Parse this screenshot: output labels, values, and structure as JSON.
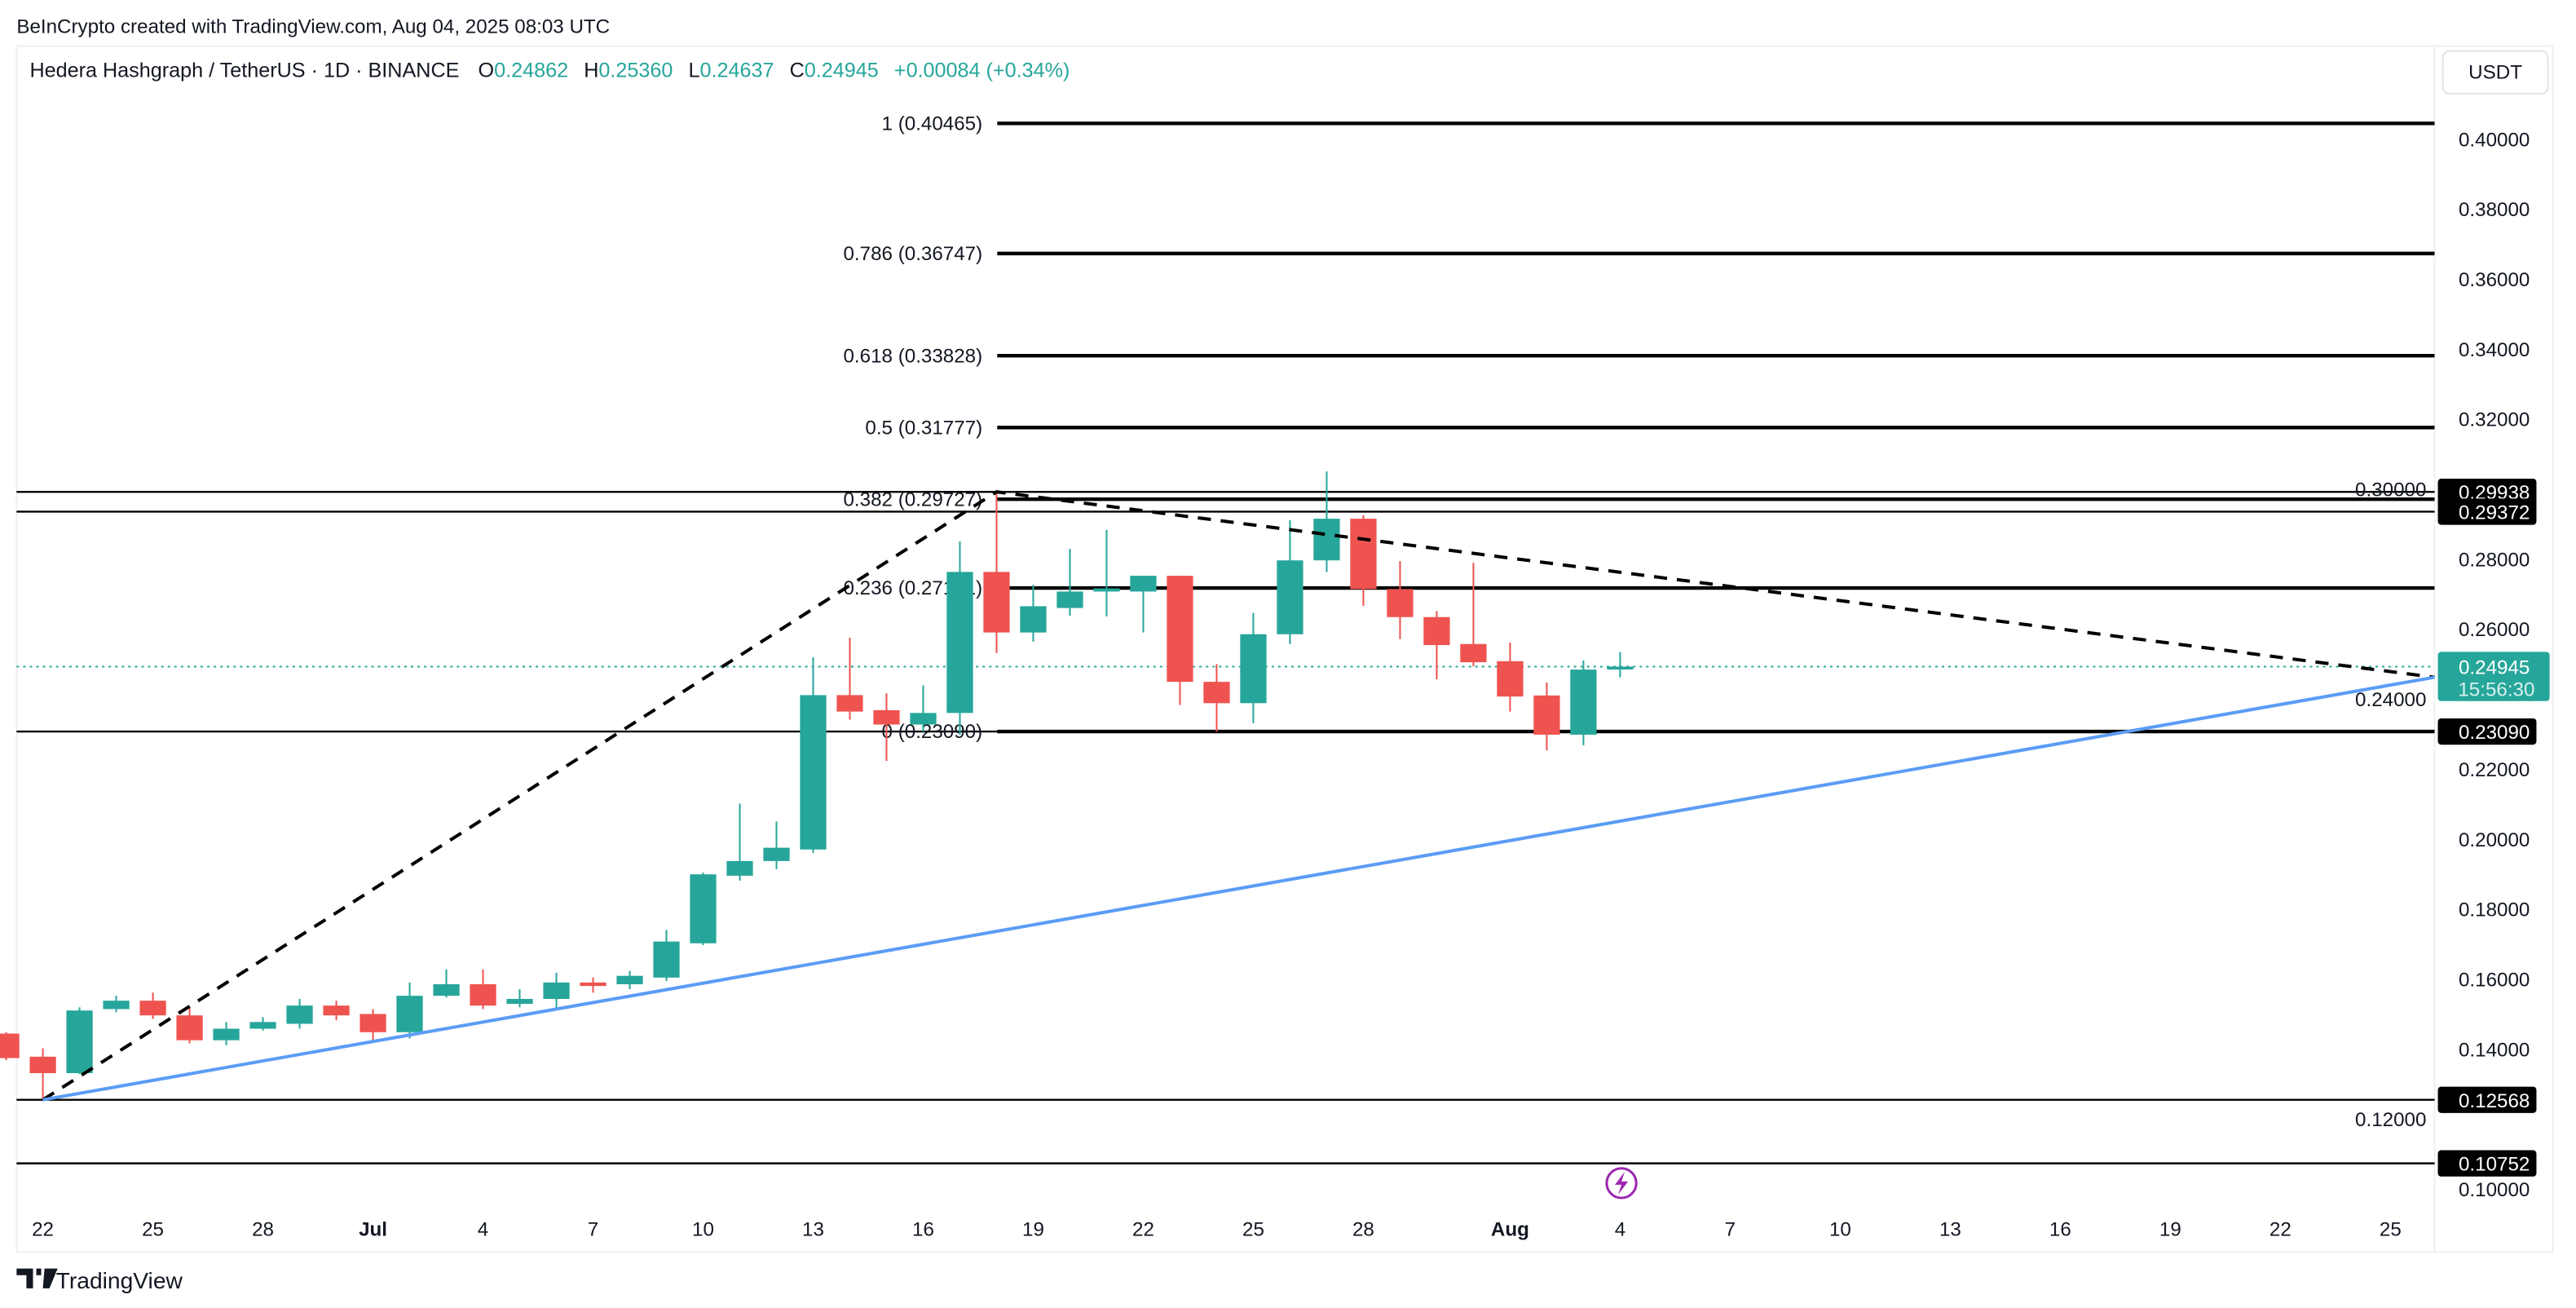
{
  "attribution": "BeInCrypto created with TradingView.com, Aug 04, 2025 08:03 UTC",
  "legend": {
    "symbol": "Hedera Hashgraph / TetherUS · 1D · BINANCE",
    "o_label": "O",
    "o": "0.24862",
    "h_label": "H",
    "h": "0.25360",
    "l_label": "L",
    "l": "0.24637",
    "c_label": "C",
    "c": "0.24945",
    "change": "+0.00084 (+0.34%)"
  },
  "currency_button": "USDT",
  "brand": "TradingView",
  "colors": {
    "up": "#26a69a",
    "down": "#ef5350",
    "trendline": "#5b9cf6",
    "alert": "#9c27b0"
  },
  "chart_data": {
    "type": "candlestick",
    "title": "Hedera Hashgraph / TetherUS · 1D · BINANCE",
    "ylim": [
      0.0955,
      0.4267
    ],
    "y_ticks": [
      "0.40000",
      "0.38000",
      "0.36000",
      "0.34000",
      "0.32000",
      "0.30000",
      "0.28000",
      "0.26000",
      "0.24000",
      "0.22000",
      "0.20000",
      "0.18000",
      "0.16000",
      "0.14000",
      "0.12000",
      "0.10000"
    ],
    "x_ticks": [
      {
        "label": "22",
        "day": 0,
        "bold": false
      },
      {
        "label": "25",
        "day": 3,
        "bold": false
      },
      {
        "label": "28",
        "day": 6,
        "bold": false
      },
      {
        "label": "Jul",
        "day": 9,
        "bold": true
      },
      {
        "label": "4",
        "day": 12,
        "bold": false
      },
      {
        "label": "7",
        "day": 15,
        "bold": false
      },
      {
        "label": "10",
        "day": 18,
        "bold": false
      },
      {
        "label": "13",
        "day": 21,
        "bold": false
      },
      {
        "label": "16",
        "day": 24,
        "bold": false
      },
      {
        "label": "19",
        "day": 27,
        "bold": false
      },
      {
        "label": "22",
        "day": 30,
        "bold": false
      },
      {
        "label": "25",
        "day": 33,
        "bold": false
      },
      {
        "label": "28",
        "day": 36,
        "bold": false
      },
      {
        "label": "Aug",
        "day": 40,
        "bold": true
      },
      {
        "label": "4",
        "day": 43,
        "bold": false
      },
      {
        "label": "7",
        "day": 46,
        "bold": false
      },
      {
        "label": "10",
        "day": 49,
        "bold": false
      },
      {
        "label": "13",
        "day": 52,
        "bold": false
      },
      {
        "label": "16",
        "day": 55,
        "bold": false
      },
      {
        "label": "19",
        "day": 58,
        "bold": false
      },
      {
        "label": "22",
        "day": 61,
        "bold": false
      },
      {
        "label": "25",
        "day": 64,
        "bold": false
      }
    ],
    "candles": [
      {
        "date": "Jun 21",
        "day": -1,
        "o": 0.1446,
        "h": 0.145,
        "l": 0.137,
        "c": 0.1376
      },
      {
        "date": "Jun 22",
        "day": 0,
        "o": 0.138,
        "h": 0.1404,
        "l": 0.1257,
        "c": 0.1333
      },
      {
        "date": "Jun 23",
        "day": 1,
        "o": 0.1333,
        "h": 0.1521,
        "l": 0.133,
        "c": 0.1512
      },
      {
        "date": "Jun 24",
        "day": 2,
        "o": 0.1516,
        "h": 0.1554,
        "l": 0.1507,
        "c": 0.154
      },
      {
        "date": "Jun 25",
        "day": 3,
        "o": 0.154,
        "h": 0.1563,
        "l": 0.1488,
        "c": 0.1498
      },
      {
        "date": "Jun 26",
        "day": 4,
        "o": 0.1498,
        "h": 0.1521,
        "l": 0.1418,
        "c": 0.1427
      },
      {
        "date": "Jun 27",
        "day": 5,
        "o": 0.1427,
        "h": 0.1479,
        "l": 0.1413,
        "c": 0.146
      },
      {
        "date": "Jun 28",
        "day": 6,
        "o": 0.146,
        "h": 0.1493,
        "l": 0.1455,
        "c": 0.1479
      },
      {
        "date": "Jun 29",
        "day": 7,
        "o": 0.1474,
        "h": 0.1545,
        "l": 0.146,
        "c": 0.1526
      },
      {
        "date": "Jun 30",
        "day": 8,
        "o": 0.1526,
        "h": 0.154,
        "l": 0.1484,
        "c": 0.1498
      },
      {
        "date": "Jul 1",
        "day": 9,
        "o": 0.1502,
        "h": 0.1516,
        "l": 0.1423,
        "c": 0.145
      },
      {
        "date": "Jul 2",
        "day": 10,
        "o": 0.145,
        "h": 0.1592,
        "l": 0.1432,
        "c": 0.1554
      },
      {
        "date": "Jul 3",
        "day": 11,
        "o": 0.1554,
        "h": 0.1629,
        "l": 0.1549,
        "c": 0.1587
      },
      {
        "date": "Jul 4",
        "day": 12,
        "o": 0.1587,
        "h": 0.1629,
        "l": 0.1516,
        "c": 0.1526
      },
      {
        "date": "Jul 5",
        "day": 13,
        "o": 0.1531,
        "h": 0.1573,
        "l": 0.1521,
        "c": 0.1545
      },
      {
        "date": "Jul 6",
        "day": 14,
        "o": 0.1545,
        "h": 0.162,
        "l": 0.1516,
        "c": 0.1592
      },
      {
        "date": "Jul 7",
        "day": 15,
        "o": 0.1592,
        "h": 0.1606,
        "l": 0.1563,
        "c": 0.1582
      },
      {
        "date": "Jul 8",
        "day": 16,
        "o": 0.1587,
        "h": 0.1625,
        "l": 0.1573,
        "c": 0.1611
      },
      {
        "date": "Jul 9",
        "day": 17,
        "o": 0.1606,
        "h": 0.1742,
        "l": 0.1596,
        "c": 0.1709
      },
      {
        "date": "Jul 10",
        "day": 18,
        "o": 0.1704,
        "h": 0.1906,
        "l": 0.1699,
        "c": 0.1901
      },
      {
        "date": "Jul 11",
        "day": 19,
        "o": 0.1897,
        "h": 0.2103,
        "l": 0.1883,
        "c": 0.1939
      },
      {
        "date": "Jul 12",
        "day": 20,
        "o": 0.1939,
        "h": 0.2052,
        "l": 0.1916,
        "c": 0.1977
      },
      {
        "date": "Jul 13",
        "day": 21,
        "o": 0.1972,
        "h": 0.2521,
        "l": 0.1962,
        "c": 0.2413
      },
      {
        "date": "Jul 14",
        "day": 22,
        "o": 0.2413,
        "h": 0.2577,
        "l": 0.2343,
        "c": 0.2366
      },
      {
        "date": "Jul 15",
        "day": 23,
        "o": 0.237,
        "h": 0.2418,
        "l": 0.2225,
        "c": 0.2329
      },
      {
        "date": "Jul 16",
        "day": 24,
        "o": 0.2329,
        "h": 0.2441,
        "l": 0.2309,
        "c": 0.2362
      },
      {
        "date": "Jul 17",
        "day": 25,
        "o": 0.2362,
        "h": 0.2852,
        "l": 0.23,
        "c": 0.2765
      },
      {
        "date": "Jul 18",
        "day": 26,
        "o": 0.2765,
        "h": 0.2994,
        "l": 0.2533,
        "c": 0.2592
      },
      {
        "date": "Jul 19",
        "day": 27,
        "o": 0.2592,
        "h": 0.2728,
        "l": 0.2566,
        "c": 0.2667
      },
      {
        "date": "Jul 20",
        "day": 28,
        "o": 0.2662,
        "h": 0.2831,
        "l": 0.264,
        "c": 0.2709
      },
      {
        "date": "Jul 21",
        "day": 29,
        "o": 0.2709,
        "h": 0.2885,
        "l": 0.2638,
        "c": 0.2718
      },
      {
        "date": "Jul 22",
        "day": 30,
        "o": 0.2709,
        "h": 0.2754,
        "l": 0.2592,
        "c": 0.2754
      },
      {
        "date": "Jul 23",
        "day": 31,
        "o": 0.2754,
        "h": 0.2754,
        "l": 0.2385,
        "c": 0.2451
      },
      {
        "date": "Jul 24",
        "day": 32,
        "o": 0.2451,
        "h": 0.2502,
        "l": 0.2309,
        "c": 0.239
      },
      {
        "date": "Jul 25",
        "day": 33,
        "o": 0.239,
        "h": 0.2648,
        "l": 0.2333,
        "c": 0.2587
      },
      {
        "date": "Jul 26",
        "day": 34,
        "o": 0.2587,
        "h": 0.2913,
        "l": 0.2559,
        "c": 0.2798
      },
      {
        "date": "Jul 27",
        "day": 35,
        "o": 0.2798,
        "h": 0.3052,
        "l": 0.2765,
        "c": 0.2917
      },
      {
        "date": "Jul 28",
        "day": 36,
        "o": 0.2917,
        "h": 0.2927,
        "l": 0.2668,
        "c": 0.2716
      },
      {
        "date": "Jul 29",
        "day": 37,
        "o": 0.2716,
        "h": 0.2796,
        "l": 0.2573,
        "c": 0.2636
      },
      {
        "date": "Jul 30",
        "day": 38,
        "o": 0.2636,
        "h": 0.2653,
        "l": 0.2458,
        "c": 0.2556
      },
      {
        "date": "Jul 31",
        "day": 39,
        "o": 0.2559,
        "h": 0.2791,
        "l": 0.2495,
        "c": 0.2507
      },
      {
        "date": "Aug 1",
        "day": 40,
        "o": 0.251,
        "h": 0.2563,
        "l": 0.2366,
        "c": 0.2409
      },
      {
        "date": "Aug 2",
        "day": 41,
        "o": 0.2412,
        "h": 0.2449,
        "l": 0.2255,
        "c": 0.23
      },
      {
        "date": "Aug 3",
        "day": 42,
        "o": 0.23,
        "h": 0.2512,
        "l": 0.227,
        "c": 0.2486
      },
      {
        "date": "Aug 4",
        "day": 43,
        "o": 0.24862,
        "h": 0.2536,
        "l": 0.24637,
        "c": 0.24945
      }
    ],
    "fib_levels": [
      {
        "label": "1 (0.40465)",
        "price": 0.40465
      },
      {
        "label": "0.786 (0.36747)",
        "price": 0.36747
      },
      {
        "label": "0.618 (0.33828)",
        "price": 0.33828
      },
      {
        "label": "0.5 (0.31777)",
        "price": 0.31777
      },
      {
        "label": "0.382 (0.29727)",
        "price": 0.29727
      },
      {
        "label": "0.236 (0.27191)",
        "price": 0.27191
      },
      {
        "label": "0 (0.23090)",
        "price": 0.2309
      }
    ],
    "horizontal_levels": [
      {
        "label": "0.29938",
        "price": 0.29938
      },
      {
        "label": "0.29372",
        "price": 0.29372
      },
      {
        "label": "0.23090",
        "price": 0.2309
      },
      {
        "label": "0.12568",
        "price": 0.12568
      },
      {
        "label": "0.10752",
        "price": 0.10752
      }
    ],
    "dashed_path": [
      {
        "day": 0,
        "price": 0.12568
      },
      {
        "day": 26,
        "price": 0.29938
      },
      {
        "day": 65.2,
        "price": 0.2464
      }
    ],
    "trendline": [
      {
        "day": 0,
        "price": 0.12568
      },
      {
        "day": 65.2,
        "price": 0.2464
      }
    ],
    "last_price": {
      "label": "0.24945",
      "price": 0.24945,
      "countdown": "15:56:30"
    }
  }
}
